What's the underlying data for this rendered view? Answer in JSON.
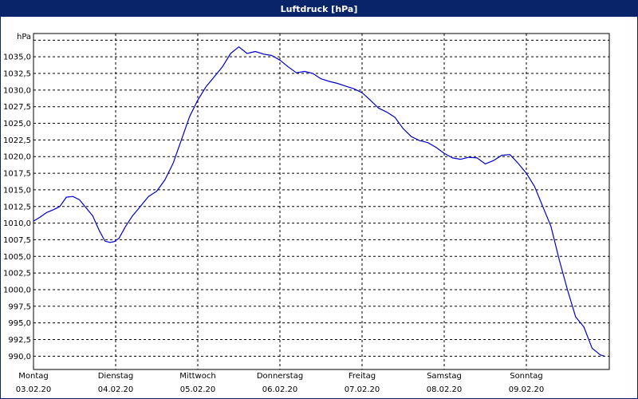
{
  "window": {
    "title": "Luftdruck [hPa]"
  },
  "chart_data": {
    "type": "line",
    "title": "Luftdruck [hPa]",
    "ylabel": "hPa",
    "xlabel": "",
    "ylim": [
      988.0,
      1038.5
    ],
    "xlim": [
      0,
      7
    ],
    "grid": true,
    "yticks": [
      990.0,
      992.5,
      995.0,
      997.5,
      1000.0,
      1002.5,
      1005.0,
      1007.5,
      1010.0,
      1012.5,
      1015.0,
      1017.5,
      1020.0,
      1022.5,
      1025.0,
      1027.5,
      1030.0,
      1032.5,
      1035.0
    ],
    "ytick_labels": [
      "990,0",
      "992,5",
      "995,0",
      "997,5",
      "1000,0",
      "1002,5",
      "1005,0",
      "1007,5",
      "1010,0",
      "1012,5",
      "1015,0",
      "1017,5",
      "1020,0",
      "1022,5",
      "1025,0",
      "1027,5",
      "1030,0",
      "1032,5",
      "1035,0"
    ],
    "x_categories": [
      {
        "day": "Montag",
        "date": "03.02.20"
      },
      {
        "day": "Dienstag",
        "date": "04.02.20"
      },
      {
        "day": "Mittwoch",
        "date": "05.02.20"
      },
      {
        "day": "Donnerstag",
        "date": "06.02.20"
      },
      {
        "day": "Freitag",
        "date": "07.02.20"
      },
      {
        "day": "Samstag",
        "date": "08.02.20"
      },
      {
        "day": "Sonntag",
        "date": "09.02.20"
      }
    ],
    "line_color": "#0000cc",
    "series": [
      {
        "x": [
          0.0,
          0.08,
          0.16,
          0.24,
          0.32,
          0.4,
          0.48,
          0.56,
          0.64,
          0.72,
          0.8,
          0.87,
          0.93,
          0.98,
          1.04,
          1.12,
          1.2,
          1.3,
          1.4,
          1.5,
          1.6,
          1.7,
          1.8,
          1.9,
          2.0,
          2.1,
          2.2,
          2.3,
          2.4,
          2.5,
          2.6,
          2.7,
          2.8,
          2.9,
          3.0,
          3.1,
          3.2,
          3.3,
          3.4,
          3.5,
          3.6,
          3.7,
          3.8,
          3.9,
          4.0,
          4.1,
          4.2,
          4.3,
          4.4,
          4.5,
          4.6,
          4.7,
          4.8,
          4.9,
          5.0,
          5.1,
          5.2,
          5.3,
          5.4,
          5.5,
          5.6,
          5.7,
          5.8,
          5.9,
          6.0,
          6.1,
          6.2,
          6.3,
          6.4,
          6.5,
          6.6,
          6.7,
          6.8,
          6.9,
          6.95
        ],
        "y": [
          1010.3,
          1010.9,
          1011.6,
          1012.0,
          1012.5,
          1013.9,
          1014.0,
          1013.5,
          1012.3,
          1011.1,
          1008.9,
          1007.3,
          1007.1,
          1007.2,
          1007.7,
          1009.5,
          1011.0,
          1012.5,
          1014.0,
          1014.8,
          1016.5,
          1019.0,
          1022.5,
          1026.0,
          1028.5,
          1030.5,
          1032.0,
          1033.5,
          1035.5,
          1036.5,
          1035.5,
          1035.8,
          1035.4,
          1035.2,
          1034.5,
          1033.5,
          1032.6,
          1032.8,
          1032.5,
          1031.7,
          1031.3,
          1031.0,
          1030.6,
          1030.2,
          1029.6,
          1028.5,
          1027.3,
          1026.7,
          1025.9,
          1024.2,
          1023.0,
          1022.4,
          1022.1,
          1021.4,
          1020.5,
          1019.8,
          1019.6,
          1019.9,
          1019.8,
          1018.9,
          1019.4,
          1020.2,
          1020.3,
          1019.0,
          1017.5,
          1015.5,
          1012.5,
          1009.5,
          1004.5,
          1000.0,
          995.9,
          994.4,
          991.2,
          990.2,
          990.0
        ]
      }
    ]
  }
}
